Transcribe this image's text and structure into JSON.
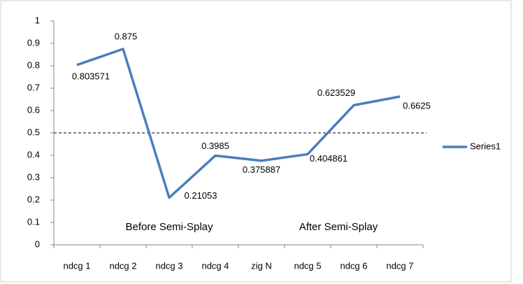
{
  "chart_data": {
    "type": "line",
    "categories": [
      "ndcg 1",
      "ndcg 2",
      "ndcg 3",
      "ndcg 4",
      "zig N",
      "ndcg 5",
      "ndcg 6",
      "ndcg 7"
    ],
    "series": [
      {
        "name": "Series1",
        "color": "#4a7ebb",
        "values": [
          0.803571,
          0.875,
          0.21053,
          0.3985,
          0.375887,
          0.404861,
          0.623529,
          0.6625
        ]
      }
    ],
    "ylim": [
      0,
      1
    ],
    "yticks": [
      0,
      0.1,
      0.2,
      0.3,
      0.4,
      0.5,
      0.6,
      0.7,
      0.8,
      0.9,
      1
    ],
    "reference_line": 0.5,
    "annotations": [
      "Before Semi-Splay",
      "After Semi-Splay"
    ],
    "legend": "right",
    "grid": false
  }
}
